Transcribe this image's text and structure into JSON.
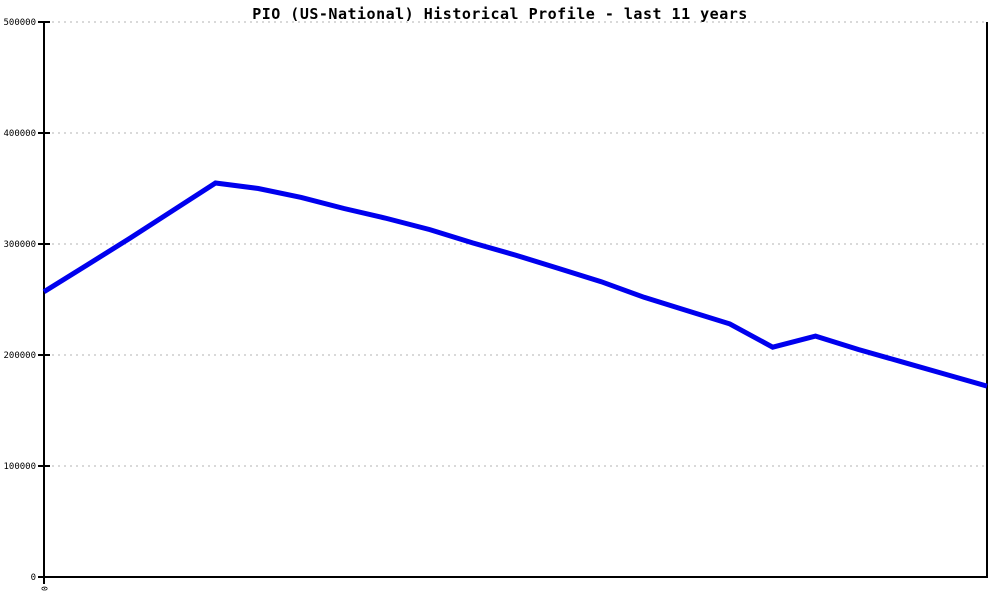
{
  "title": "PIO (US-National) Historical Profile - last 11 years",
  "chart_data": {
    "type": "line",
    "title": "PIO (US-National) Historical Profile - last 11 years",
    "xlabel": "",
    "ylabel": "",
    "x_span_label": "last 11 years",
    "x": [
      0,
      1,
      2,
      3,
      4,
      5,
      6,
      7,
      8,
      9,
      10,
      11,
      12,
      13,
      14,
      15,
      16,
      17,
      18,
      19,
      20,
      21,
      22
    ],
    "series": [
      {
        "name": "PIO (US-National)",
        "color": "#0000ee",
        "values": [
          257000,
          281000,
          305000,
          330000,
          355000,
          350000,
          342000,
          332000,
          323000,
          313000,
          301000,
          290000,
          278000,
          266000,
          252000,
          240000,
          228000,
          207000,
          217000,
          205000,
          194000,
          183000,
          172000
        ]
      }
    ],
    "ylim": [
      0,
      500000
    ],
    "yticks": [
      0,
      100000,
      200000,
      300000,
      400000,
      500000
    ],
    "ytick_labels": [
      "0",
      "100000",
      "200000",
      "300000",
      "400000",
      "500000"
    ],
    "x_tick_labels_visible": [
      "0"
    ],
    "grid": "horizontal-dashed",
    "legend": "none",
    "colors": {
      "line": "#0000ee",
      "gridline": "#b3b3b3",
      "axis": "#000000",
      "background": "#ffffff",
      "text": "#000000"
    }
  }
}
